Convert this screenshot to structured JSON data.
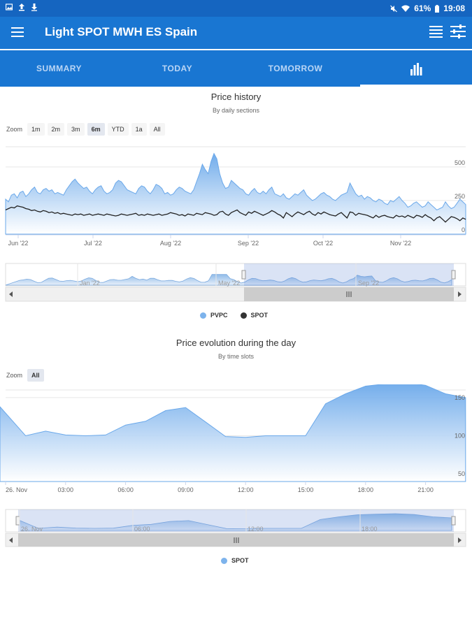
{
  "status_bar": {
    "battery": "61%",
    "time": "19:08"
  },
  "app_bar": {
    "title": "Light SPOT MWH ES Spain"
  },
  "tabs": [
    {
      "label": "SUMMARY",
      "active": false
    },
    {
      "label": "TODAY",
      "active": false
    },
    {
      "label": "TOMORROW",
      "active": false
    },
    {
      "label": "",
      "icon": "bar-chart-icon",
      "active": true
    }
  ],
  "colors": {
    "primary": "#1976d2",
    "dark": "#1565c0",
    "pvpc": "#7db3ec",
    "spot_line": "#222222"
  },
  "history": {
    "zoom_label": "Zoom",
    "zoom_buttons": [
      {
        "label": "1m",
        "selected": false
      },
      {
        "label": "2m",
        "selected": false
      },
      {
        "label": "3m",
        "selected": false
      },
      {
        "label": "6m",
        "selected": true
      },
      {
        "label": "YTD",
        "selected": false
      },
      {
        "label": "1a",
        "selected": false
      },
      {
        "label": "All",
        "selected": false
      }
    ],
    "navigator_labels": [
      "Jan '22",
      "May '22",
      "Sep '22"
    ],
    "legend": [
      {
        "name": "PVPC",
        "color": "#7db3ec"
      },
      {
        "name": "SPOT",
        "color": "#333333"
      }
    ]
  },
  "day": {
    "zoom_label": "Zoom",
    "zoom_buttons": [
      {
        "label": "All",
        "selected": true
      }
    ],
    "navigator_labels": [
      "26. Nov",
      "06:00",
      "12:00",
      "18:00"
    ],
    "legend": [
      {
        "name": "SPOT",
        "color": "#7db3ec"
      }
    ]
  },
  "chart_data": [
    {
      "type": "area",
      "title": "Price history",
      "subtitle": "By daily sections",
      "x_ticks": [
        "Jun '22",
        "Jul '22",
        "Aug '22",
        "Sep '22",
        "Oct '22",
        "Nov '22"
      ],
      "y_ticks": [
        0,
        250,
        500
      ],
      "ylim": [
        0,
        650
      ],
      "grid": true,
      "legend_position": "bottom-center",
      "series": [
        {
          "name": "PVPC",
          "type": "area",
          "values": [
            260,
            240,
            290,
            300,
            270,
            310,
            320,
            280,
            300,
            330,
            350,
            310,
            300,
            330,
            340,
            320,
            330,
            300,
            310,
            300,
            290,
            330,
            360,
            390,
            410,
            380,
            360,
            340,
            350,
            320,
            300,
            330,
            350,
            360,
            320,
            300,
            310,
            330,
            380,
            400,
            390,
            360,
            330,
            320,
            310,
            300,
            340,
            360,
            350,
            320,
            300,
            330,
            370,
            360,
            340,
            300,
            310,
            290,
            300,
            330,
            350,
            340,
            320,
            310,
            300,
            330,
            390,
            450,
            520,
            480,
            450,
            540,
            600,
            560,
            450,
            380,
            340,
            350,
            400,
            380,
            360,
            340,
            330,
            300,
            290,
            320,
            340,
            310,
            300,
            320,
            300,
            330,
            350,
            300,
            290,
            280,
            300,
            270,
            260,
            280,
            300,
            290,
            310,
            330,
            290,
            270,
            250,
            260,
            280,
            300,
            310,
            290,
            280,
            260,
            250,
            270,
            290,
            300,
            310,
            380,
            340,
            300,
            280,
            290,
            260,
            280,
            270,
            250,
            240,
            260,
            250,
            230,
            220,
            250,
            240,
            260,
            280,
            250,
            230,
            200,
            210,
            230,
            240,
            220,
            200,
            210,
            240,
            220,
            200,
            180,
            190,
            200,
            240,
            210,
            190,
            200,
            230,
            260,
            240,
            220
          ]
        },
        {
          "name": "SPOT",
          "type": "line",
          "values": [
            180,
            190,
            200,
            195,
            210,
            205,
            200,
            190,
            185,
            175,
            180,
            170,
            165,
            175,
            170,
            160,
            165,
            155,
            160,
            150,
            155,
            150,
            145,
            140,
            150,
            145,
            150,
            140,
            145,
            150,
            140,
            145,
            150,
            145,
            140,
            150,
            145,
            140,
            135,
            140,
            150,
            145,
            140,
            145,
            150,
            155,
            140,
            145,
            140,
            150,
            145,
            140,
            145,
            150,
            140,
            145,
            150,
            160,
            155,
            150,
            140,
            145,
            135,
            150,
            145,
            140,
            155,
            150,
            145,
            160,
            155,
            150,
            140,
            145,
            165,
            170,
            150,
            140,
            160,
            170,
            180,
            160,
            150,
            140,
            165,
            155,
            170,
            160,
            150,
            140,
            150,
            160,
            175,
            165,
            150,
            140,
            120,
            160,
            145,
            130,
            150,
            165,
            155,
            145,
            160,
            170,
            150,
            140,
            160,
            150,
            165,
            155,
            145,
            140,
            135,
            150,
            160,
            140,
            120,
            165,
            160,
            140,
            155,
            150,
            145,
            140,
            130,
            120,
            140,
            125,
            135,
            140,
            130,
            125,
            120,
            140,
            130,
            135,
            125,
            140,
            130,
            120,
            140,
            135,
            125,
            145,
            130,
            120,
            100,
            120,
            130,
            110,
            90,
            110,
            130,
            125,
            115,
            100,
            120,
            110
          ]
        }
      ]
    },
    {
      "type": "area",
      "title": "Price evolution during the day",
      "subtitle": "By time slots",
      "x_ticks": [
        "26. Nov",
        "03:00",
        "06:00",
        "09:00",
        "12:00",
        "15:00",
        "18:00",
        "21:00"
      ],
      "y_ticks": [
        50,
        100,
        150
      ],
      "ylim": [
        40,
        160
      ],
      "grid": true,
      "legend_position": "bottom-center",
      "series": [
        {
          "name": "SPOT",
          "type": "area",
          "x": [
            -0.3,
            1,
            2,
            3,
            4,
            5,
            6,
            7,
            8,
            9,
            10,
            11,
            12,
            13,
            14,
            15,
            16,
            17,
            18,
            19,
            20,
            21,
            22,
            23
          ],
          "values": [
            138,
            100,
            106,
            101,
            100,
            101,
            114,
            119,
            133,
            137,
            118,
            99,
            98,
            100,
            100,
            100,
            142,
            155,
            165,
            168,
            170,
            166,
            155,
            150
          ]
        }
      ]
    }
  ]
}
